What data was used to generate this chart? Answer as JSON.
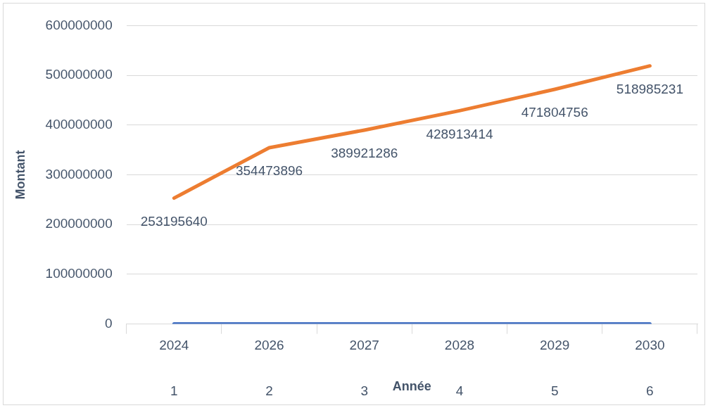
{
  "chart_data": {
    "type": "line",
    "xlabel": "Année",
    "ylabel": "Montant",
    "categories": [
      "2024",
      "2026",
      "2027",
      "2028",
      "2029",
      "2030"
    ],
    "series": [
      {
        "color": "#4472c4",
        "values": [
          0,
          0,
          0,
          0,
          0,
          0
        ]
      },
      {
        "color": "#ed7d31",
        "values": [
          253195640,
          354473896,
          389921286,
          428913414,
          471804756,
          518985231
        ],
        "value_labels": [
          "253195640",
          "354473896",
          "389921286",
          "428913414",
          "471804756",
          "518985231"
        ]
      }
    ],
    "ylim": [
      0,
      600000000
    ],
    "yticks": [
      0,
      100000000,
      200000000,
      300000000,
      400000000,
      500000000,
      600000000
    ],
    "grid": "y",
    "legend": false,
    "marker": "none",
    "line_style": "solid",
    "annotations": [
      "1",
      "2",
      "3",
      "4",
      "5",
      "6"
    ]
  }
}
